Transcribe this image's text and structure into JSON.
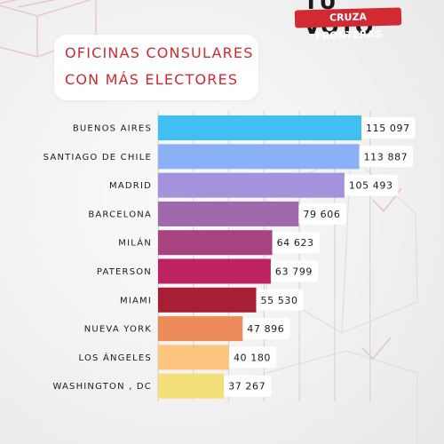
{
  "logo": {
    "top_text": "TU VOTO",
    "band_text": "CRUZA FRONTERAS"
  },
  "title": {
    "line1": "OFICINAS CONSULARES",
    "line2": "CON MÁS ELECTORES"
  },
  "colors": {
    "title": "#d12a32",
    "brand": "#d12a32"
  },
  "chart_data": {
    "type": "bar",
    "orientation": "horizontal",
    "title": "OFICINAS CONSULARES CON MÁS ELECTORES",
    "xlabel": "",
    "ylabel": "",
    "xlim": [
      0,
      120000
    ],
    "grid": "vertical",
    "legend": "none",
    "categories": [
      "BUENOS AIRES",
      "SANTIAGO DE CHILE",
      "MADRID",
      "BARCELONA",
      "MILÁN",
      "PATERSON",
      "MIAMI",
      "NUEVA YORK",
      "LOS ÁNGELES",
      "WASHINGTON , DC"
    ],
    "values": [
      115097,
      113887,
      105493,
      79606,
      64623,
      63799,
      55530,
      47896,
      40180,
      37267
    ],
    "value_labels": [
      "115 097",
      "113 887",
      "105 493",
      "79 606",
      "64 623",
      "63 799",
      "55 530",
      "47 896",
      "40 180",
      "37 267"
    ],
    "bar_colors": [
      "#42bff2",
      "#8ab1f5",
      "#a492dc",
      "#a068ad",
      "#a8437f",
      "#bf2260",
      "#a61f35",
      "#ee8b5a",
      "#fcc57f",
      "#f4e07a"
    ]
  }
}
